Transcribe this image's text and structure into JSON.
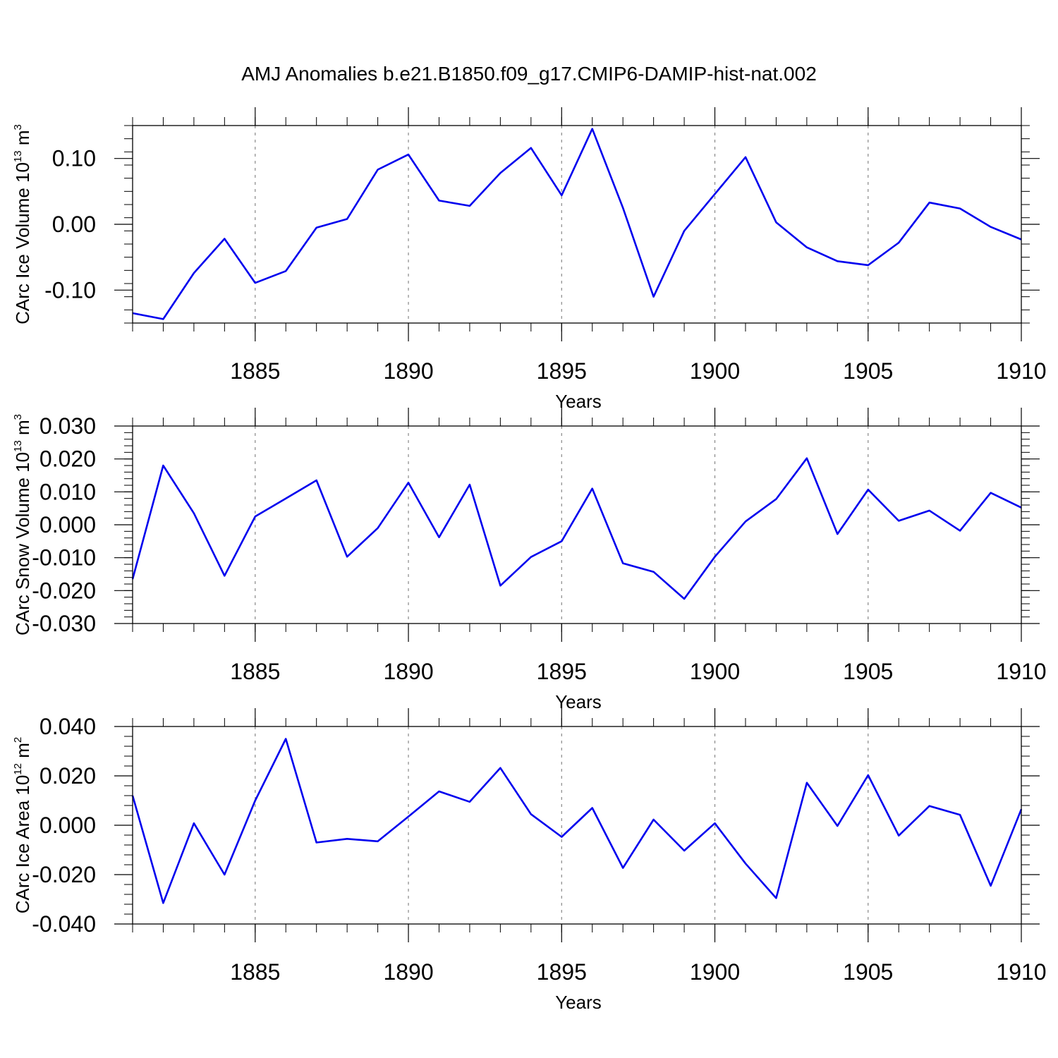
{
  "figure_title": "AMJ Anomalies b.e21.B1850.f09_g17.CMIP6-DAMIP-hist-nat.002",
  "line_color": "#0000ee",
  "chart_data": [
    {
      "type": "line",
      "title": "AMJ Anomalies b.e21.B1850.f09_g17.CMIP6-DAMIP-hist-nat.002",
      "xlabel": "Years",
      "ylabel": {
        "main": "CArc Ice Volume 10",
        "sup": "13",
        "unit": " m",
        "unit_sup": "3"
      },
      "xlim": [
        1881,
        1910
      ],
      "ylim": [
        -0.15,
        0.15
      ],
      "x_ticks": [
        1885,
        1890,
        1895,
        1900,
        1905,
        1910
      ],
      "x_tick_labels": [
        "1885",
        "1890",
        "1895",
        "1900",
        "1905",
        "1910"
      ],
      "y_ticks": [
        -0.1,
        0.0,
        0.1
      ],
      "y_tick_labels": [
        "-0.10",
        "0.00",
        "0.10"
      ],
      "y_minor_step": 0.02,
      "grid": "vertical dashed at major x ticks",
      "x": [
        1881,
        1882,
        1883,
        1884,
        1885,
        1886,
        1887,
        1888,
        1889,
        1890,
        1891,
        1892,
        1893,
        1894,
        1895,
        1896,
        1897,
        1898,
        1899,
        1900,
        1901,
        1902,
        1903,
        1904,
        1905,
        1906,
        1907,
        1908,
        1909,
        1910
      ],
      "series": [
        {
          "name": "CArc Ice Volume",
          "values": [
            -0.135,
            -0.144,
            -0.074,
            -0.022,
            -0.089,
            -0.071,
            -0.005,
            0.008,
            0.083,
            0.106,
            0.036,
            0.028,
            0.078,
            0.116,
            0.044,
            0.145,
            0.025,
            -0.11,
            -0.01,
            0.046,
            0.102,
            0.003,
            -0.035,
            -0.056,
            -0.062,
            -0.028,
            0.033,
            0.024,
            -0.004,
            -0.023
          ]
        }
      ]
    },
    {
      "type": "line",
      "xlabel": "Years",
      "ylabel": {
        "main": "CArc Snow Volume 10",
        "sup": "13",
        "unit": " m",
        "unit_sup": "3"
      },
      "xlim": [
        1881,
        1910
      ],
      "ylim": [
        -0.03,
        0.03
      ],
      "x_ticks": [
        1885,
        1890,
        1895,
        1900,
        1905,
        1910
      ],
      "x_tick_labels": [
        "1885",
        "1890",
        "1895",
        "1900",
        "1905",
        "1910"
      ],
      "y_ticks": [
        -0.03,
        -0.02,
        -0.01,
        0.0,
        0.01,
        0.02,
        0.03
      ],
      "y_tick_labels": [
        "-0.030",
        "-0.020",
        "-0.010",
        "0.000",
        "0.010",
        "0.020",
        "0.030"
      ],
      "y_minor_step": 0.002,
      "grid": "vertical dashed at major x ticks",
      "x": [
        1881,
        1882,
        1883,
        1884,
        1885,
        1886,
        1887,
        1888,
        1889,
        1890,
        1891,
        1892,
        1893,
        1894,
        1895,
        1896,
        1897,
        1898,
        1899,
        1900,
        1901,
        1902,
        1903,
        1904,
        1905,
        1906,
        1907,
        1908,
        1909,
        1910
      ],
      "series": [
        {
          "name": "CArc Snow Volume",
          "values": [
            -0.0165,
            0.018,
            0.0035,
            -0.0155,
            0.0025,
            0.008,
            0.0135,
            -0.0097,
            -0.001,
            0.0128,
            -0.0038,
            0.0122,
            -0.0185,
            -0.0098,
            -0.005,
            0.011,
            -0.0117,
            -0.0143,
            -0.0225,
            -0.0097,
            0.001,
            0.0078,
            0.0202,
            -0.0028,
            0.0107,
            0.0012,
            0.0043,
            -0.0018,
            0.0097,
            0.0052
          ]
        }
      ]
    },
    {
      "type": "line",
      "xlabel": "Years",
      "ylabel": {
        "main": "CArc Ice Area 10",
        "sup": "12",
        "unit": " m",
        "unit_sup": "2"
      },
      "xlim": [
        1881,
        1910
      ],
      "ylim": [
        -0.04,
        0.04
      ],
      "x_ticks": [
        1885,
        1890,
        1895,
        1900,
        1905,
        1910
      ],
      "x_tick_labels": [
        "1885",
        "1890",
        "1895",
        "1900",
        "1905",
        "1910"
      ],
      "y_ticks": [
        -0.04,
        -0.02,
        0.0,
        0.02,
        0.04
      ],
      "y_tick_labels": [
        "-0.040",
        "-0.020",
        "0.000",
        "0.020",
        "0.040"
      ],
      "y_minor_step": 0.004,
      "grid": "vertical dashed at major x ticks",
      "x": [
        1881,
        1882,
        1883,
        1884,
        1885,
        1886,
        1887,
        1888,
        1889,
        1890,
        1891,
        1892,
        1893,
        1894,
        1895,
        1896,
        1897,
        1898,
        1899,
        1900,
        1901,
        1902,
        1903,
        1904,
        1905,
        1906,
        1907,
        1908,
        1909,
        1910
      ],
      "series": [
        {
          "name": "CArc Ice Area",
          "values": [
            0.012,
            -0.0315,
            0.0008,
            -0.02,
            0.01,
            0.035,
            -0.007,
            -0.0055,
            -0.0065,
            0.0035,
            0.0137,
            0.0095,
            0.0232,
            0.0045,
            -0.0047,
            0.007,
            -0.0173,
            0.0023,
            -0.0103,
            0.0008,
            -0.0155,
            -0.0295,
            0.0172,
            -0.0003,
            0.0203,
            -0.0042,
            0.0078,
            0.0042,
            -0.0245,
            0.0065
          ]
        }
      ]
    }
  ]
}
